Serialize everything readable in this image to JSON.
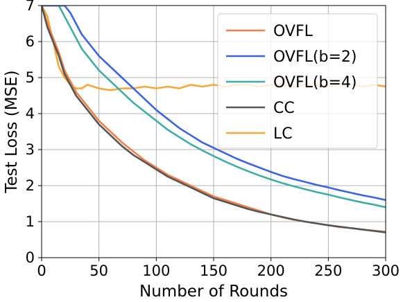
{
  "chart_data": {
    "type": "line",
    "title": "",
    "xlabel": "Number of Rounds",
    "ylabel": "Test Loss (MSE)",
    "xlim": [
      0,
      300
    ],
    "ylim": [
      0,
      7
    ],
    "xticks": [
      0,
      50,
      100,
      150,
      200,
      250,
      300
    ],
    "yticks": [
      0,
      1,
      2,
      3,
      4,
      5,
      6,
      7
    ],
    "grid": true,
    "legend_position": "top-right",
    "series": [
      {
        "name": "OVFL",
        "color": "#f0804a",
        "x": [
          0,
          5,
          10,
          15,
          20,
          25,
          30,
          35,
          40,
          50,
          60,
          70,
          80,
          90,
          100,
          110,
          120,
          130,
          140,
          150,
          160,
          170,
          180,
          190,
          200,
          210,
          220,
          230,
          240,
          250,
          260,
          270,
          280,
          290,
          300
        ],
        "y": [
          7.0,
          6.5,
          6.1,
          5.7,
          5.2,
          4.9,
          4.6,
          4.4,
          4.2,
          3.8,
          3.5,
          3.2,
          2.95,
          2.7,
          2.5,
          2.3,
          2.15,
          2.0,
          1.85,
          1.7,
          1.6,
          1.5,
          1.4,
          1.3,
          1.2,
          1.12,
          1.05,
          1.0,
          0.95,
          0.9,
          0.85,
          0.82,
          0.78,
          0.75,
          0.72
        ]
      },
      {
        "name": "OVFL(b=2)",
        "color": "#3d63dd",
        "x": [
          0,
          5,
          10,
          15,
          20,
          25,
          30,
          35,
          40,
          50,
          60,
          70,
          80,
          90,
          100,
          110,
          120,
          130,
          140,
          150,
          160,
          170,
          180,
          190,
          200,
          210,
          220,
          230,
          240,
          250,
          260,
          270,
          280,
          290,
          300
        ],
        "y": [
          7.0,
          7.0,
          7.0,
          7.0,
          7.0,
          6.8,
          6.5,
          6.2,
          6.0,
          5.6,
          5.3,
          5.0,
          4.7,
          4.4,
          4.1,
          3.85,
          3.6,
          3.4,
          3.2,
          3.05,
          2.9,
          2.75,
          2.62,
          2.5,
          2.38,
          2.27,
          2.18,
          2.1,
          2.02,
          1.95,
          1.87,
          1.8,
          1.73,
          1.67,
          1.6
        ]
      },
      {
        "name": "OVFL(b=4)",
        "color": "#3fada5",
        "x": [
          0,
          5,
          10,
          15,
          20,
          25,
          30,
          35,
          40,
          50,
          60,
          70,
          80,
          90,
          100,
          110,
          120,
          130,
          140,
          150,
          160,
          170,
          180,
          190,
          200,
          210,
          220,
          230,
          240,
          250,
          260,
          270,
          280,
          290,
          300
        ],
        "y": [
          7.0,
          7.0,
          7.0,
          7.0,
          6.7,
          6.4,
          6.1,
          5.8,
          5.6,
          5.2,
          4.9,
          4.6,
          4.3,
          4.05,
          3.8,
          3.55,
          3.35,
          3.15,
          2.98,
          2.82,
          2.67,
          2.53,
          2.4,
          2.28,
          2.17,
          2.07,
          1.98,
          1.9,
          1.82,
          1.75,
          1.67,
          1.6,
          1.53,
          1.47,
          1.4
        ]
      },
      {
        "name": "CC",
        "color": "#555555",
        "x": [
          0,
          5,
          10,
          15,
          20,
          25,
          30,
          35,
          40,
          50,
          60,
          70,
          80,
          90,
          100,
          110,
          120,
          130,
          140,
          150,
          160,
          170,
          180,
          190,
          200,
          210,
          220,
          230,
          240,
          250,
          260,
          270,
          280,
          290,
          300
        ],
        "y": [
          7.0,
          6.4,
          6.0,
          5.6,
          5.1,
          4.8,
          4.5,
          4.3,
          4.1,
          3.7,
          3.4,
          3.1,
          2.85,
          2.65,
          2.45,
          2.25,
          2.1,
          1.95,
          1.8,
          1.65,
          1.55,
          1.45,
          1.35,
          1.27,
          1.2,
          1.13,
          1.06,
          1.0,
          0.95,
          0.9,
          0.86,
          0.82,
          0.78,
          0.74,
          0.7
        ]
      },
      {
        "name": "LC",
        "color": "#f5a83a",
        "x": [
          0,
          5,
          10,
          15,
          20,
          25,
          30,
          35,
          40,
          50,
          60,
          70,
          80,
          90,
          100,
          110,
          120,
          130,
          140,
          150,
          160,
          170,
          180,
          190,
          200,
          210,
          220,
          230,
          240,
          250,
          260,
          270,
          280,
          290,
          300
        ],
        "y": [
          7.0,
          6.7,
          6.0,
          5.3,
          5.0,
          4.8,
          4.7,
          4.7,
          4.8,
          4.7,
          4.65,
          4.7,
          4.7,
          4.75,
          4.7,
          4.75,
          4.7,
          4.8,
          4.75,
          4.8,
          4.75,
          4.8,
          4.8,
          4.75,
          4.8,
          4.8,
          4.75,
          4.8,
          4.8,
          4.75,
          4.8,
          4.8,
          4.75,
          4.8,
          4.75
        ]
      }
    ]
  }
}
